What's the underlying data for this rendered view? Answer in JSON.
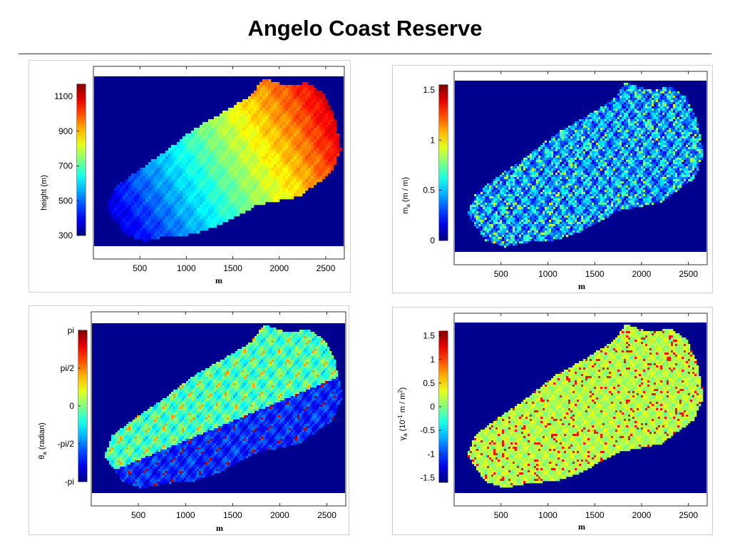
{
  "page": {
    "title": "Angelo Coast Reserve"
  },
  "colors": {
    "background_navy": "#00008f",
    "colormap": "jet",
    "frame": "#000000"
  },
  "chart_data": [
    {
      "type": "heatmap",
      "id": "height",
      "title": "",
      "xlabel": "m",
      "ylabel": "height (m)",
      "xticks": [
        "500",
        "1000",
        "1500",
        "2000",
        "2500"
      ],
      "xtick_values": [
        500,
        1000,
        1500,
        2000,
        2500
      ],
      "xlim": [
        0,
        2700
      ],
      "colorbar": {
        "ticks": [
          "300",
          "500",
          "700",
          "900",
          "1100"
        ],
        "tick_values": [
          300,
          500,
          700,
          900,
          1100
        ],
        "range": [
          300,
          1170
        ]
      },
      "field": "elevation: low (~350 m) at west/southwest end rising to ~1170 m at east/northeast end"
    },
    {
      "type": "heatmap",
      "id": "slope",
      "title": "",
      "xlabel": "m",
      "ylabel": "m_a (m / m)",
      "ylabel_main": "m",
      "ylabel_sub": "a",
      "ylabel_rest": " (m / m)",
      "xticks": [
        "500",
        "1000",
        "1500",
        "2000",
        "2500"
      ],
      "xtick_values": [
        500,
        1000,
        1500,
        2000,
        2500
      ],
      "xlim": [
        0,
        2700
      ],
      "colorbar": {
        "ticks": [
          "0",
          "0.5",
          "1",
          "1.5"
        ],
        "tick_values": [
          0,
          0.5,
          1,
          1.5
        ],
        "range": [
          0,
          1.55
        ]
      },
      "field": "slope magnitude: mostly 0.2-0.6 with high ridges/channels up to ~1.2"
    },
    {
      "type": "heatmap",
      "id": "aspect",
      "title": "",
      "xlabel": "m",
      "ylabel": "θ_a (radian)",
      "ylabel_main": "θ",
      "ylabel_sub": "a",
      "ylabel_rest": " (radian)",
      "xticks": [
        "500",
        "1000",
        "1500",
        "2000",
        "2500"
      ],
      "xtick_values": [
        500,
        1000,
        1500,
        2000,
        2500
      ],
      "xlim": [
        0,
        2700
      ],
      "colorbar": {
        "ticks": [
          "pi",
          "pi/2",
          "0",
          "-pi/2",
          "-pi"
        ],
        "tick_values": [
          3.1416,
          1.5708,
          0,
          -1.5708,
          -3.1416
        ],
        "range": [
          -3.1416,
          3.1416
        ]
      },
      "field": "aspect angle: northern hillslopes ~0 to pi/2, southern hillslopes ~-pi/2 to -pi with red ridges"
    },
    {
      "type": "heatmap",
      "id": "curvature",
      "title": "",
      "xlabel": "m",
      "ylabel": "γ_a (10^-1 m / m^2)",
      "ylabel_main": "γ",
      "ylabel_sub": "a",
      "ylabel_mid": " (10",
      "ylabel_sup1": "-1",
      "ylabel_mid2": " m / m",
      "ylabel_sup2": "2",
      "ylabel_end": ")",
      "xticks": [
        "500",
        "1000",
        "1500",
        "2000",
        "2500"
      ],
      "xtick_values": [
        500,
        1000,
        1500,
        2000,
        2500
      ],
      "xlim": [
        0,
        2700
      ],
      "colorbar": {
        "ticks": [
          "1.5",
          "1",
          "0.5",
          "0",
          "-0.5",
          "-1",
          "-1.5"
        ],
        "tick_values": [
          1.5,
          1,
          0.5,
          0,
          -0.5,
          -1,
          -1.5
        ],
        "range": [
          -1.6,
          1.6
        ]
      },
      "field": "curvature: mostly near 0 (cyan/green) with red channel lines"
    }
  ]
}
